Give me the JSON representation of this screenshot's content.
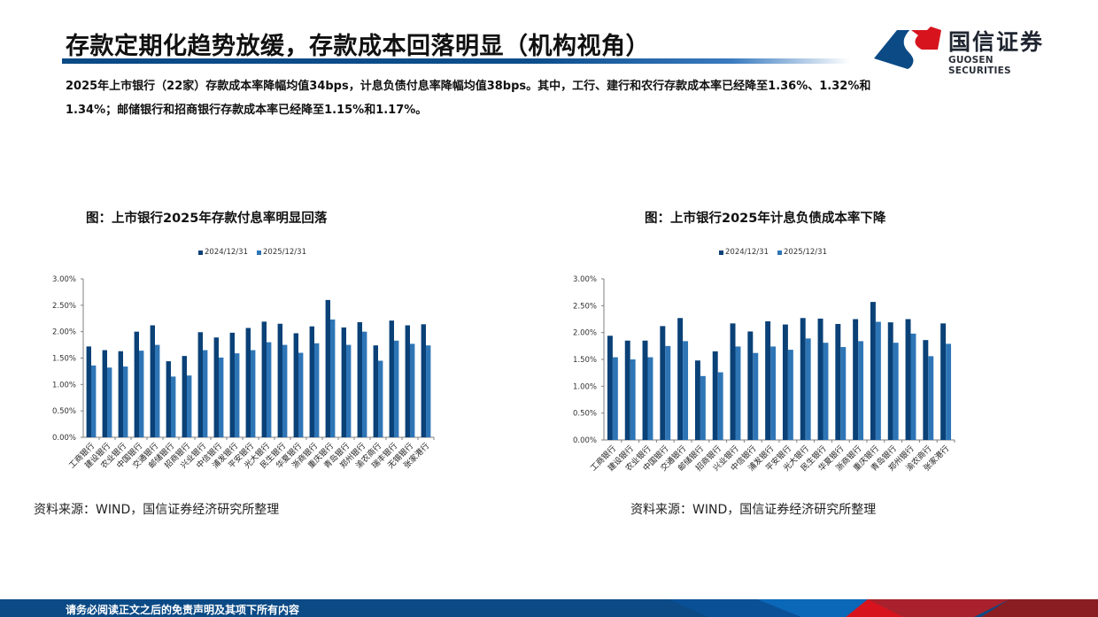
{
  "header": {
    "title": "存款定期化趋势放缓，存款成本回落明显（机构视角）",
    "logo_cn": "国信证券",
    "logo_en": "GUOSEN SECURITIES"
  },
  "summary": {
    "line1": "2025年上市银行（22家）存款成本率降幅均值34bps，计息负债付息率降幅均值38bps。其中，工行、建行和农行存款成本率已经降至1.36%、1.32%和",
    "line2": "1.34%；邮储银行和招商银行存款成本率已经降至1.15%和1.17%。"
  },
  "colors": {
    "series_2024": "#0a4177",
    "series_2025": "#2e75b6",
    "brand_blue": "#0b4a85",
    "brand_red": "#d7141e"
  },
  "left_chart": {
    "title": "图：上市银行2025年存款付息率明显回落",
    "source": "资料来源：WIND，国信证券经济研究所整理"
  },
  "right_chart": {
    "title": "图：上市银行2025年计息负债成本率下降",
    "source": "资料来源：WIND，国信证券经济研究所整理"
  },
  "footer": {
    "disclaimer": "请务必阅读正文之后的免责声明及其项下所有内容"
  },
  "chart_data": [
    {
      "type": "bar",
      "title": "图：上市银行2025年存款付息率明显回落",
      "xlabel": "",
      "ylabel": "",
      "ylim": [
        0,
        3.0
      ],
      "yticks": [
        "0.00%",
        "0.50%",
        "1.00%",
        "1.50%",
        "2.00%",
        "2.50%",
        "3.00%"
      ],
      "grid": false,
      "legend_position": "top",
      "categories": [
        "工商银行",
        "建设银行",
        "农业银行",
        "中国银行",
        "交通银行",
        "邮储银行",
        "招商银行",
        "兴业银行",
        "中信银行",
        "浦发银行",
        "平安银行",
        "光大银行",
        "民生银行",
        "华夏银行",
        "浙商银行",
        "重庆银行",
        "青岛银行",
        "郑州银行",
        "渝农商行",
        "瑞丰银行",
        "无锡银行",
        "张家港行"
      ],
      "series": [
        {
          "name": "2024/12/31",
          "values": [
            1.72,
            1.65,
            1.63,
            2.0,
            2.12,
            1.44,
            1.54,
            1.99,
            1.89,
            1.98,
            2.07,
            2.19,
            2.15,
            1.97,
            2.1,
            2.6,
            2.08,
            2.18,
            1.74,
            2.21,
            2.12,
            2.14
          ]
        },
        {
          "name": "2025/12/31",
          "values": [
            1.36,
            1.32,
            1.34,
            1.64,
            1.75,
            1.15,
            1.17,
            1.65,
            1.51,
            1.59,
            1.65,
            1.8,
            1.75,
            1.6,
            1.78,
            2.23,
            1.75,
            2.0,
            1.45,
            1.83,
            1.77,
            1.74
          ]
        }
      ]
    },
    {
      "type": "bar",
      "title": "图：上市银行2025年计息负债成本率下降",
      "xlabel": "",
      "ylabel": "",
      "ylim": [
        0,
        3.0
      ],
      "yticks": [
        "0.00%",
        "0.50%",
        "1.00%",
        "1.50%",
        "2.00%",
        "2.50%",
        "3.00%"
      ],
      "grid": false,
      "legend_position": "top",
      "categories": [
        "工商银行",
        "建设银行",
        "农业银行",
        "中国银行",
        "交通银行",
        "邮储银行",
        "招商银行",
        "兴业银行",
        "中信银行",
        "浦发银行",
        "平安银行",
        "光大银行",
        "民生银行",
        "华夏银行",
        "浙商银行",
        "重庆银行",
        "青岛银行",
        "郑州银行",
        "渝农商行",
        "张家港行"
      ],
      "series": [
        {
          "name": "2024/12/31",
          "values": [
            1.94,
            1.85,
            1.85,
            2.12,
            2.27,
            1.48,
            1.65,
            2.17,
            2.02,
            2.21,
            2.15,
            2.27,
            2.26,
            2.16,
            2.25,
            2.57,
            2.19,
            2.25,
            1.86,
            2.17
          ]
        },
        {
          "name": "2025/12/31",
          "values": [
            1.54,
            1.5,
            1.54,
            1.75,
            1.84,
            1.19,
            1.26,
            1.74,
            1.62,
            1.74,
            1.68,
            1.89,
            1.81,
            1.73,
            1.84,
            2.2,
            1.81,
            1.98,
            1.56,
            1.79
          ]
        }
      ]
    }
  ]
}
